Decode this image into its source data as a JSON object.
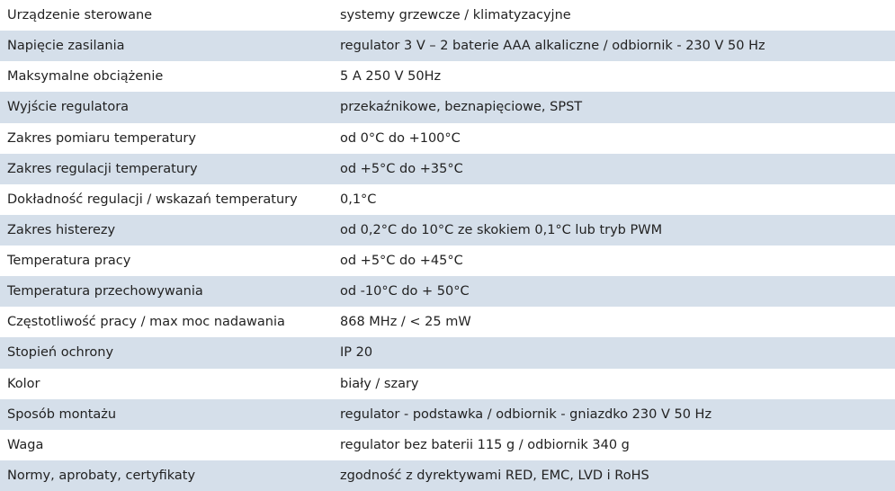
{
  "table": {
    "rows": [
      [
        "Urządzenie sterowane",
        "systemy grzewcze / klimatyzacyjne"
      ],
      [
        "Napięcie zasilania",
        "regulator 3 V – 2 baterie AAA alkaliczne / odbiornik - 230 V 50 Hz"
      ],
      [
        "Maksymalne obciążenie",
        "5 A 250 V 50Hz"
      ],
      [
        "Wyjście regulatora",
        "przekaźnikowe, beznapięciowe, SPST"
      ],
      [
        "Zakres pomiaru temperatury",
        "od 0°C do +100°C"
      ],
      [
        "Zakres regulacji temperatury",
        "od +5°C do +35°C"
      ],
      [
        "Dokładność regulacji / wskazań temperatury",
        "0,1°C"
      ],
      [
        "Zakres histerezy",
        "od 0,2°C do 10°C ze skokiem 0,1°C lub tryb PWM"
      ],
      [
        "Temperatura pracy",
        "od +5°C do +45°C"
      ],
      [
        "Temperatura przechowywania",
        "od -10°C do + 50°C"
      ],
      [
        "Częstotliwość pracy / max moc nadawania",
        "868 MHz / < 25 mW"
      ],
      [
        "Stopień ochrony",
        "IP 20"
      ],
      [
        "Kolor",
        "biały / szary"
      ],
      [
        "Sposób montażu",
        "regulator - podstawka / odbiornik - gniazdko 230 V 50 Hz"
      ],
      [
        "Waga",
        "regulator bez baterii 115 g / odbiornik 340 g"
      ],
      [
        "Normy, aprobaty, certyfikaty",
        "zgodność z dyrektywami RED, EMC, LVD i RoHS"
      ]
    ]
  }
}
